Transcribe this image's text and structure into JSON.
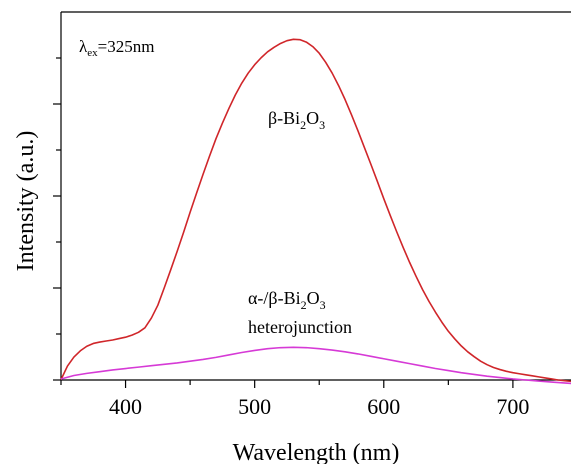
{
  "chart_data": {
    "type": "line",
    "title": "",
    "xlabel": "Wavelength (nm)",
    "ylabel": "Intensity (a.u.)",
    "xlim": [
      350,
      745
    ],
    "ylim": [
      0,
      100
    ],
    "x_ticks": [
      400,
      500,
      600,
      700
    ],
    "y_tick_labels_shown": false,
    "grid": false,
    "legend": "none",
    "excitation_label": {
      "symbol": "λ",
      "sub": "ex",
      "rest": "=325nm"
    },
    "series": [
      {
        "name": "β-Bi2O3",
        "label_parts": {
          "a": "β-Bi",
          "s1": "2",
          "b": "O",
          "s2": "3"
        },
        "color": "#d0262a",
        "x": [
          350,
          355,
          360,
          365,
          370,
          375,
          380,
          385,
          390,
          395,
          400,
          405,
          410,
          415,
          420,
          425,
          430,
          435,
          440,
          445,
          450,
          455,
          460,
          465,
          470,
          475,
          480,
          485,
          490,
          495,
          500,
          505,
          510,
          515,
          520,
          525,
          530,
          535,
          540,
          545,
          550,
          555,
          560,
          565,
          570,
          575,
          580,
          585,
          590,
          595,
          600,
          605,
          610,
          615,
          620,
          625,
          630,
          635,
          640,
          645,
          650,
          655,
          660,
          665,
          670,
          675,
          680,
          685,
          690,
          695,
          700,
          705,
          710,
          715,
          720,
          725,
          730,
          735,
          740,
          745
        ],
        "y": [
          0.1,
          4.0,
          6.6,
          8.4,
          9.7,
          10.5,
          10.9,
          11.2,
          11.5,
          11.9,
          12.3,
          12.9,
          13.7,
          15.0,
          17.8,
          21.5,
          26.5,
          31.7,
          37.0,
          42.5,
          48.2,
          53.7,
          59.1,
          64.3,
          69.3,
          73.8,
          78.0,
          81.9,
          85.3,
          88.2,
          90.6,
          92.6,
          94.3,
          95.6,
          96.7,
          97.5,
          97.9,
          97.8,
          97.1,
          95.8,
          93.9,
          91.3,
          88.2,
          84.6,
          80.6,
          76.2,
          71.6,
          66.8,
          62.0,
          57.1,
          52.1,
          47.3,
          42.6,
          38.1,
          33.8,
          29.8,
          26.0,
          22.6,
          19.5,
          16.6,
          14.0,
          11.8,
          9.8,
          8.1,
          6.7,
          5.4,
          4.4,
          3.6,
          3.0,
          2.5,
          2.1,
          1.8,
          1.5,
          1.2,
          0.9,
          0.6,
          0.3,
          0.0,
          -0.2,
          -0.4
        ]
      },
      {
        "name": "α-/β-Bi2O3 heterojunction",
        "label_parts": {
          "a": "α-/β-Bi",
          "s1": "2",
          "b": "O",
          "s2": "3",
          "line2": "heterojunction"
        },
        "color": "#d63ad6",
        "x": [
          350,
          360,
          370,
          380,
          390,
          400,
          410,
          420,
          430,
          440,
          450,
          460,
          470,
          480,
          490,
          500,
          510,
          520,
          530,
          540,
          550,
          560,
          570,
          580,
          590,
          600,
          610,
          620,
          630,
          640,
          650,
          660,
          670,
          680,
          690,
          700,
          710,
          720,
          730,
          745
        ],
        "y": [
          0.3,
          1.3,
          1.9,
          2.4,
          2.9,
          3.3,
          3.7,
          4.1,
          4.5,
          4.9,
          5.4,
          5.9,
          6.5,
          7.2,
          7.9,
          8.5,
          9.0,
          9.3,
          9.4,
          9.3,
          9.0,
          8.6,
          8.1,
          7.5,
          6.8,
          6.1,
          5.4,
          4.7,
          4.0,
          3.3,
          2.7,
          2.1,
          1.6,
          1.1,
          0.7,
          0.3,
          0.0,
          -0.3,
          -0.6,
          -1.0
        ]
      }
    ]
  }
}
